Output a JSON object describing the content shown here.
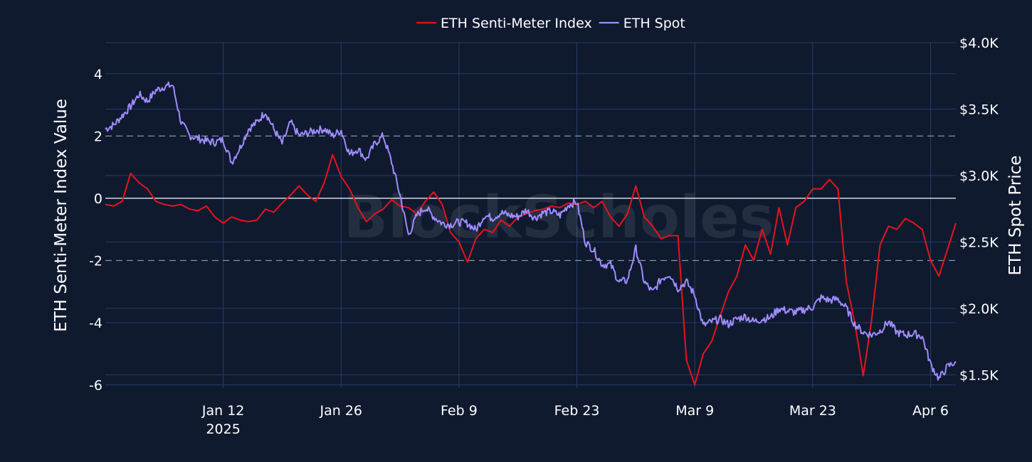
{
  "chart_data": {
    "type": "line",
    "title": "",
    "watermark": "BlockScholes",
    "legend": {
      "placement": "top-center",
      "orientation": "horizontal"
    },
    "grid": true,
    "x_axis": {
      "range": [
        "2024-12-29",
        "2025-04-09"
      ],
      "ticks": [
        {
          "date": "2025-01-12",
          "label": "Jan 12",
          "sublabel": "2025"
        },
        {
          "date": "2025-01-26",
          "label": "Jan 26"
        },
        {
          "date": "2025-02-09",
          "label": "Feb 9"
        },
        {
          "date": "2025-02-23",
          "label": "Feb 23"
        },
        {
          "date": "2025-03-09",
          "label": "Mar 9"
        },
        {
          "date": "2025-03-23",
          "label": "Mar 23"
        },
        {
          "date": "2025-04-06",
          "label": "Apr 6"
        }
      ]
    },
    "y_left": {
      "label": "ETH Senti-Meter Index Value",
      "range": [
        -6.1,
        5
      ],
      "ticks": [
        {
          "value": 4,
          "label": "4"
        },
        {
          "value": 2,
          "label": "2"
        },
        {
          "value": 0,
          "label": "0"
        },
        {
          "value": -2,
          "label": "-2"
        },
        {
          "value": -4,
          "label": "-4"
        },
        {
          "value": -6,
          "label": "-6"
        }
      ],
      "reference_lines": [
        {
          "value": 2,
          "style": "dashed"
        },
        {
          "value": -2,
          "style": "dashed"
        },
        {
          "value": 0,
          "style": "solid"
        }
      ]
    },
    "y_right": {
      "label": "ETH Spot Price",
      "range": [
        1400,
        4000
      ],
      "ticks": [
        {
          "value": 4000,
          "label": "$4.0K"
        },
        {
          "value": 3500,
          "label": "$3.5K"
        },
        {
          "value": 3000,
          "label": "$3.0K"
        },
        {
          "value": 2500,
          "label": "$2.5K"
        },
        {
          "value": 2000,
          "label": "$2.0K"
        },
        {
          "value": 1500,
          "label": "$1.5K"
        }
      ]
    },
    "series": [
      {
        "name": "ETH Senti-Meter Index",
        "axis": "left",
        "color": "#e8131b",
        "points": [
          [
            "2024-12-29",
            -0.2
          ],
          [
            "2024-12-30",
            -0.25
          ],
          [
            "2024-12-31",
            -0.1
          ],
          [
            "2025-01-01",
            0.8
          ],
          [
            "2025-01-02",
            0.5
          ],
          [
            "2025-01-03",
            0.3
          ],
          [
            "2025-01-04",
            -0.1
          ],
          [
            "2025-01-05",
            -0.2
          ],
          [
            "2025-01-06",
            -0.25
          ],
          [
            "2025-01-07",
            -0.2
          ],
          [
            "2025-01-08",
            -0.35
          ],
          [
            "2025-01-09",
            -0.4
          ],
          [
            "2025-01-10",
            -0.25
          ],
          [
            "2025-01-11",
            -0.6
          ],
          [
            "2025-01-12",
            -0.8
          ],
          [
            "2025-01-13",
            -0.6
          ],
          [
            "2025-01-14",
            -0.7
          ],
          [
            "2025-01-15",
            -0.75
          ],
          [
            "2025-01-16",
            -0.7
          ],
          [
            "2025-01-17",
            -0.35
          ],
          [
            "2025-01-18",
            -0.45
          ],
          [
            "2025-01-19",
            -0.15
          ],
          [
            "2025-01-20",
            0.1
          ],
          [
            "2025-01-21",
            0.4
          ],
          [
            "2025-01-22",
            0.1
          ],
          [
            "2025-01-23",
            -0.1
          ],
          [
            "2025-01-24",
            0.5
          ],
          [
            "2025-01-25",
            1.4
          ],
          [
            "2025-01-26",
            0.7
          ],
          [
            "2025-01-27",
            0.3
          ],
          [
            "2025-01-28",
            -0.3
          ],
          [
            "2025-01-29",
            -0.75
          ],
          [
            "2025-01-30",
            -0.5
          ],
          [
            "2025-01-31",
            -0.35
          ],
          [
            "2025-02-01",
            -0.05
          ],
          [
            "2025-02-02",
            -0.25
          ],
          [
            "2025-02-03",
            -0.3
          ],
          [
            "2025-02-04",
            -0.5
          ],
          [
            "2025-02-05",
            -0.1
          ],
          [
            "2025-02-06",
            0.2
          ],
          [
            "2025-02-07",
            -0.2
          ],
          [
            "2025-02-08",
            -1.1
          ],
          [
            "2025-02-09",
            -1.4
          ],
          [
            "2025-02-10",
            -2.05
          ],
          [
            "2025-02-11",
            -1.3
          ],
          [
            "2025-02-12",
            -1.0
          ],
          [
            "2025-02-13",
            -1.1
          ],
          [
            "2025-02-14",
            -0.7
          ],
          [
            "2025-02-15",
            -0.9
          ],
          [
            "2025-02-16",
            -0.6
          ],
          [
            "2025-02-17",
            -0.5
          ],
          [
            "2025-02-18",
            -0.4
          ],
          [
            "2025-02-19",
            -0.35
          ],
          [
            "2025-02-20",
            -0.25
          ],
          [
            "2025-02-21",
            -0.3
          ],
          [
            "2025-02-22",
            -0.15
          ],
          [
            "2025-02-23",
            -0.2
          ],
          [
            "2025-02-24",
            -0.1
          ],
          [
            "2025-02-25",
            -0.3
          ],
          [
            "2025-02-26",
            -0.1
          ],
          [
            "2025-02-27",
            -0.6
          ],
          [
            "2025-02-28",
            -0.9
          ],
          [
            "2025-03-01",
            -0.5
          ],
          [
            "2025-03-02",
            0.4
          ],
          [
            "2025-03-03",
            -0.6
          ],
          [
            "2025-03-04",
            -0.9
          ],
          [
            "2025-03-05",
            -1.3
          ],
          [
            "2025-03-06",
            -1.2
          ],
          [
            "2025-03-07",
            -1.2
          ],
          [
            "2025-03-08",
            -5.2
          ],
          [
            "2025-03-09",
            -6.0
          ],
          [
            "2025-03-10",
            -5.0
          ],
          [
            "2025-03-11",
            -4.6
          ],
          [
            "2025-03-12",
            -3.8
          ],
          [
            "2025-03-13",
            -3.0
          ],
          [
            "2025-03-14",
            -2.5
          ],
          [
            "2025-03-15",
            -1.5
          ],
          [
            "2025-03-16",
            -2.0
          ],
          [
            "2025-03-17",
            -1.0
          ],
          [
            "2025-03-18",
            -1.8
          ],
          [
            "2025-03-19",
            -0.3
          ],
          [
            "2025-03-20",
            -1.5
          ],
          [
            "2025-03-21",
            -0.3
          ],
          [
            "2025-03-22",
            -0.1
          ],
          [
            "2025-03-23",
            0.3
          ],
          [
            "2025-03-24",
            0.3
          ],
          [
            "2025-03-25",
            0.6
          ],
          [
            "2025-03-26",
            0.3
          ],
          [
            "2025-03-27",
            -2.7
          ],
          [
            "2025-03-28",
            -4.0
          ],
          [
            "2025-03-29",
            -5.7
          ],
          [
            "2025-03-30",
            -3.9
          ],
          [
            "2025-03-31",
            -1.5
          ],
          [
            "2025-04-01",
            -0.9
          ],
          [
            "2025-04-02",
            -1.0
          ],
          [
            "2025-04-03",
            -0.65
          ],
          [
            "2025-04-04",
            -0.8
          ],
          [
            "2025-04-05",
            -1.0
          ],
          [
            "2025-04-06",
            -2.0
          ],
          [
            "2025-04-07",
            -2.5
          ],
          [
            "2025-04-08",
            -1.65
          ],
          [
            "2025-04-09",
            -0.8
          ]
        ]
      },
      {
        "name": "ETH Spot",
        "axis": "right",
        "color": "#a08cff",
        "points": [
          [
            "2024-12-29",
            3350
          ],
          [
            "2024-12-30",
            3380
          ],
          [
            "2024-12-31",
            3450
          ],
          [
            "2025-01-01",
            3520
          ],
          [
            "2025-01-02",
            3610
          ],
          [
            "2025-01-03",
            3560
          ],
          [
            "2025-01-04",
            3640
          ],
          [
            "2025-01-05",
            3670
          ],
          [
            "2025-01-06",
            3680
          ],
          [
            "2025-01-07",
            3400
          ],
          [
            "2025-01-08",
            3300
          ],
          [
            "2025-01-09",
            3280
          ],
          [
            "2025-01-10",
            3260
          ],
          [
            "2025-01-11",
            3250
          ],
          [
            "2025-01-12",
            3270
          ],
          [
            "2025-01-13",
            3100
          ],
          [
            "2025-01-14",
            3210
          ],
          [
            "2025-01-15",
            3350
          ],
          [
            "2025-01-16",
            3400
          ],
          [
            "2025-01-17",
            3480
          ],
          [
            "2025-01-18",
            3350
          ],
          [
            "2025-01-19",
            3240
          ],
          [
            "2025-01-20",
            3400
          ],
          [
            "2025-01-21",
            3300
          ],
          [
            "2025-01-22",
            3320
          ],
          [
            "2025-01-23",
            3340
          ],
          [
            "2025-01-24",
            3350
          ],
          [
            "2025-01-25",
            3300
          ],
          [
            "2025-01-26",
            3340
          ],
          [
            "2025-01-27",
            3160
          ],
          [
            "2025-01-28",
            3200
          ],
          [
            "2025-01-29",
            3120
          ],
          [
            "2025-01-30",
            3240
          ],
          [
            "2025-01-31",
            3300
          ],
          [
            "2025-02-01",
            3100
          ],
          [
            "2025-02-02",
            2850
          ],
          [
            "2025-02-03",
            2550
          ],
          [
            "2025-02-04",
            2700
          ],
          [
            "2025-02-05",
            2760
          ],
          [
            "2025-02-06",
            2690
          ],
          [
            "2025-02-07",
            2640
          ],
          [
            "2025-02-08",
            2630
          ],
          [
            "2025-02-09",
            2650
          ],
          [
            "2025-02-10",
            2640
          ],
          [
            "2025-02-11",
            2590
          ],
          [
            "2025-02-12",
            2700
          ],
          [
            "2025-02-13",
            2680
          ],
          [
            "2025-02-14",
            2720
          ],
          [
            "2025-02-15",
            2700
          ],
          [
            "2025-02-16",
            2690
          ],
          [
            "2025-02-17",
            2740
          ],
          [
            "2025-02-18",
            2680
          ],
          [
            "2025-02-19",
            2720
          ],
          [
            "2025-02-20",
            2730
          ],
          [
            "2025-02-21",
            2700
          ],
          [
            "2025-02-22",
            2780
          ],
          [
            "2025-02-23",
            2800
          ],
          [
            "2025-02-24",
            2500
          ],
          [
            "2025-02-25",
            2440
          ],
          [
            "2025-02-26",
            2330
          ],
          [
            "2025-02-27",
            2330
          ],
          [
            "2025-02-28",
            2200
          ],
          [
            "2025-03-01",
            2210
          ],
          [
            "2025-03-02",
            2450
          ],
          [
            "2025-03-03",
            2200
          ],
          [
            "2025-03-04",
            2120
          ],
          [
            "2025-03-05",
            2220
          ],
          [
            "2025-03-06",
            2260
          ],
          [
            "2025-03-07",
            2150
          ],
          [
            "2025-03-08",
            2200
          ],
          [
            "2025-03-09",
            2100
          ],
          [
            "2025-03-10",
            1870
          ],
          [
            "2025-03-11",
            1900
          ],
          [
            "2025-03-12",
            1920
          ],
          [
            "2025-03-13",
            1880
          ],
          [
            "2025-03-14",
            1920
          ],
          [
            "2025-03-15",
            1940
          ],
          [
            "2025-03-16",
            1900
          ],
          [
            "2025-03-17",
            1920
          ],
          [
            "2025-03-18",
            1930
          ],
          [
            "2025-03-19",
            2000
          ],
          [
            "2025-03-20",
            1980
          ],
          [
            "2025-03-21",
            1970
          ],
          [
            "2025-03-22",
            1990
          ],
          [
            "2025-03-23",
            2010
          ],
          [
            "2025-03-24",
            2080
          ],
          [
            "2025-03-25",
            2060
          ],
          [
            "2025-03-26",
            2070
          ],
          [
            "2025-03-27",
            2000
          ],
          [
            "2025-03-28",
            1880
          ],
          [
            "2025-03-29",
            1820
          ],
          [
            "2025-03-30",
            1800
          ],
          [
            "2025-03-31",
            1830
          ],
          [
            "2025-04-01",
            1900
          ],
          [
            "2025-04-02",
            1820
          ],
          [
            "2025-04-03",
            1800
          ],
          [
            "2025-04-04",
            1810
          ],
          [
            "2025-04-05",
            1790
          ],
          [
            "2025-04-06",
            1580
          ],
          [
            "2025-04-07",
            1470
          ],
          [
            "2025-04-08",
            1560
          ],
          [
            "2025-04-09",
            1600
          ]
        ]
      }
    ]
  }
}
